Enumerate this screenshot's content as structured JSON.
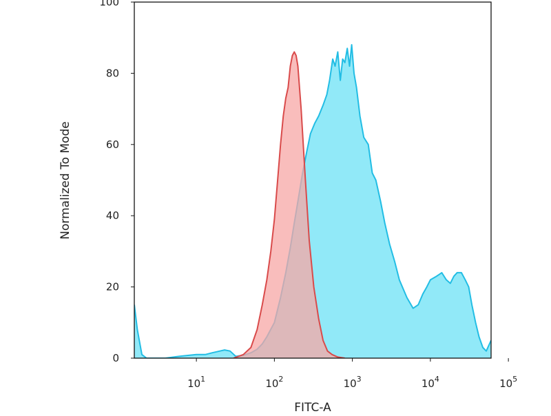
{
  "chart_data": {
    "type": "area",
    "title": "",
    "xlabel": "FITC-A",
    "ylabel": "Normalized To Mode",
    "x_scale": "log",
    "xlim": [
      1.6,
      60000
    ],
    "ylim": [
      0,
      100
    ],
    "grid": false,
    "legend": "none",
    "x_ticks": [
      {
        "value": 10,
        "base": "10",
        "exp": "1"
      },
      {
        "value": 100,
        "base": "10",
        "exp": "2"
      },
      {
        "value": 1000,
        "base": "10",
        "exp": "3"
      },
      {
        "value": 10000,
        "base": "10",
        "exp": "4"
      },
      {
        "value": 100000,
        "base": "10",
        "exp": "5"
      }
    ],
    "y_ticks": [
      0,
      20,
      40,
      60,
      80,
      100
    ],
    "series": [
      {
        "color": "#22bde4",
        "fill": "#8be8f8",
        "x": [
          1.6,
          1.75,
          2.0,
          2.3,
          3,
          4,
          6,
          8,
          10,
          13,
          16,
          20,
          23,
          27,
          32,
          40,
          50,
          60,
          70,
          80,
          100,
          120,
          140,
          160,
          180,
          200,
          230,
          260,
          290,
          330,
          370,
          420,
          470,
          510,
          560,
          600,
          650,
          700,
          750,
          800,
          860,
          920,
          980,
          1050,
          1130,
          1250,
          1400,
          1600,
          1800,
          2000,
          2300,
          2600,
          3000,
          3500,
          4000,
          5000,
          6000,
          7000,
          8000,
          9000,
          10000,
          12000,
          14000,
          16000,
          18000,
          20000,
          22000,
          25000,
          28000,
          31000,
          34000,
          38000,
          42000,
          47000,
          52000,
          60000
        ],
        "y": [
          15,
          8,
          1,
          0,
          0,
          0,
          0.5,
          0.8,
          1,
          1,
          1.5,
          2,
          2.3,
          2,
          0.5,
          0.8,
          1.5,
          2.5,
          4,
          6,
          10,
          17,
          24,
          31,
          38,
          44,
          52,
          58,
          63,
          66,
          68,
          71,
          74,
          78,
          84,
          82,
          86,
          78,
          84,
          83,
          87,
          82,
          88,
          80,
          76,
          68,
          62,
          60,
          52,
          50,
          44,
          38,
          32,
          27,
          22,
          17,
          14,
          15,
          18,
          20,
          22,
          23,
          24,
          22,
          21,
          23,
          24,
          24,
          22,
          20,
          15,
          10,
          6,
          3,
          2,
          5
        ]
      },
      {
        "color": "#d94a4a",
        "fill": "#f7a7a6",
        "x": [
          30,
          40,
          50,
          60,
          70,
          80,
          90,
          100,
          110,
          120,
          130,
          140,
          150,
          160,
          170,
          180,
          190,
          200,
          220,
          250,
          280,
          320,
          370,
          420,
          480,
          550,
          650,
          800
        ],
        "y": [
          0,
          1,
          3,
          8,
          15,
          22,
          30,
          39,
          50,
          60,
          68,
          73,
          76,
          82,
          85,
          86,
          85,
          82,
          70,
          50,
          33,
          20,
          11,
          5,
          2,
          1,
          0.3,
          0
        ]
      }
    ]
  }
}
